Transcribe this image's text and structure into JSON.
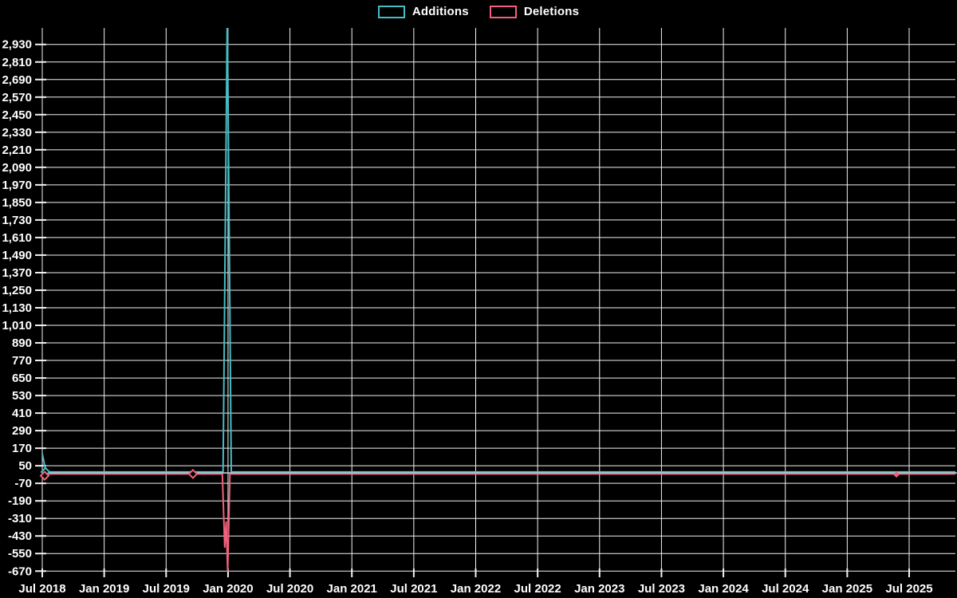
{
  "colors": {
    "background": "#000000",
    "grid": "#f2f2f2",
    "text": "#ffffff",
    "additions": "#45bec6",
    "deletions": "#ef617c",
    "flat_overlay_line": "#b9cdd6"
  },
  "legend": {
    "items": [
      {
        "label": "Additions",
        "color": "#45bec6"
      },
      {
        "label": "Deletions",
        "color": "#ef617c"
      }
    ]
  },
  "chart_data": {
    "type": "line",
    "title": "",
    "xlabel": "",
    "ylabel": "",
    "legend_position": "top-center",
    "grid": "on",
    "x_tick_labels": [
      "Jul 2018",
      "Jan 2019",
      "Jul 2019",
      "Jan 2020",
      "Jul 2020",
      "Jan 2021",
      "Jul 2021",
      "Jan 2022",
      "Jul 2022",
      "Jan 2023",
      "Jul 2023",
      "Jan 2024",
      "Jul 2024",
      "Jan 2025",
      "Jul 2025"
    ],
    "x_range": "Jul 2018 to ~Nov 2025",
    "y_ticks": [
      2930,
      2810,
      2690,
      2570,
      2450,
      2330,
      2210,
      2090,
      1970,
      1850,
      1730,
      1610,
      1490,
      1370,
      1250,
      1130,
      1010,
      890,
      770,
      650,
      530,
      410,
      290,
      170,
      50,
      -70,
      -190,
      -310,
      -430,
      -550,
      -670
    ],
    "y_tick_labels": [
      "2,930",
      "2,810",
      "2,690",
      "2,570",
      "2,450",
      "2,330",
      "2,210",
      "2,090",
      "1,970",
      "1,850",
      "1,730",
      "1,610",
      "1,490",
      "1,370",
      "1,250",
      "1,130",
      "1,010",
      "890",
      "770",
      "650",
      "530",
      "410",
      "290",
      "170",
      "50",
      "-70",
      "-190",
      "-310",
      "-430",
      "-550",
      "-670"
    ],
    "ylim": [
      -674,
      3043
    ],
    "series": [
      {
        "name": "Additions",
        "color": "#45bec6",
        "peak_note": "spike ~Jan 2020 exceeds 3,040 (clipped at chart top)",
        "points": [
          [
            0,
            133
          ],
          [
            0.004,
            8
          ],
          [
            0.198,
            8
          ],
          [
            0.2026,
            3150
          ],
          [
            0.207,
            8
          ],
          [
            1,
            8
          ]
        ],
        "markers": [
          [
            0.0035,
            8
          ]
        ],
        "small_markers": []
      },
      {
        "name": "Deletions",
        "color": "#ef617c",
        "peak_note": "trough ~Jan 2020 reaches about -670",
        "points": [
          [
            0,
            -18
          ],
          [
            0.004,
            -6
          ],
          [
            0.1972,
            -6
          ],
          [
            0.1998,
            -510
          ],
          [
            0.2014,
            -330
          ],
          [
            0.2031,
            -674
          ],
          [
            0.2055,
            -6
          ],
          [
            1,
            -6
          ]
        ],
        "markers": [
          [
            0.0026,
            -18
          ],
          [
            0.165,
            -6
          ]
        ],
        "small_markers": [
          [
            0.9354,
            -10
          ]
        ]
      }
    ]
  }
}
